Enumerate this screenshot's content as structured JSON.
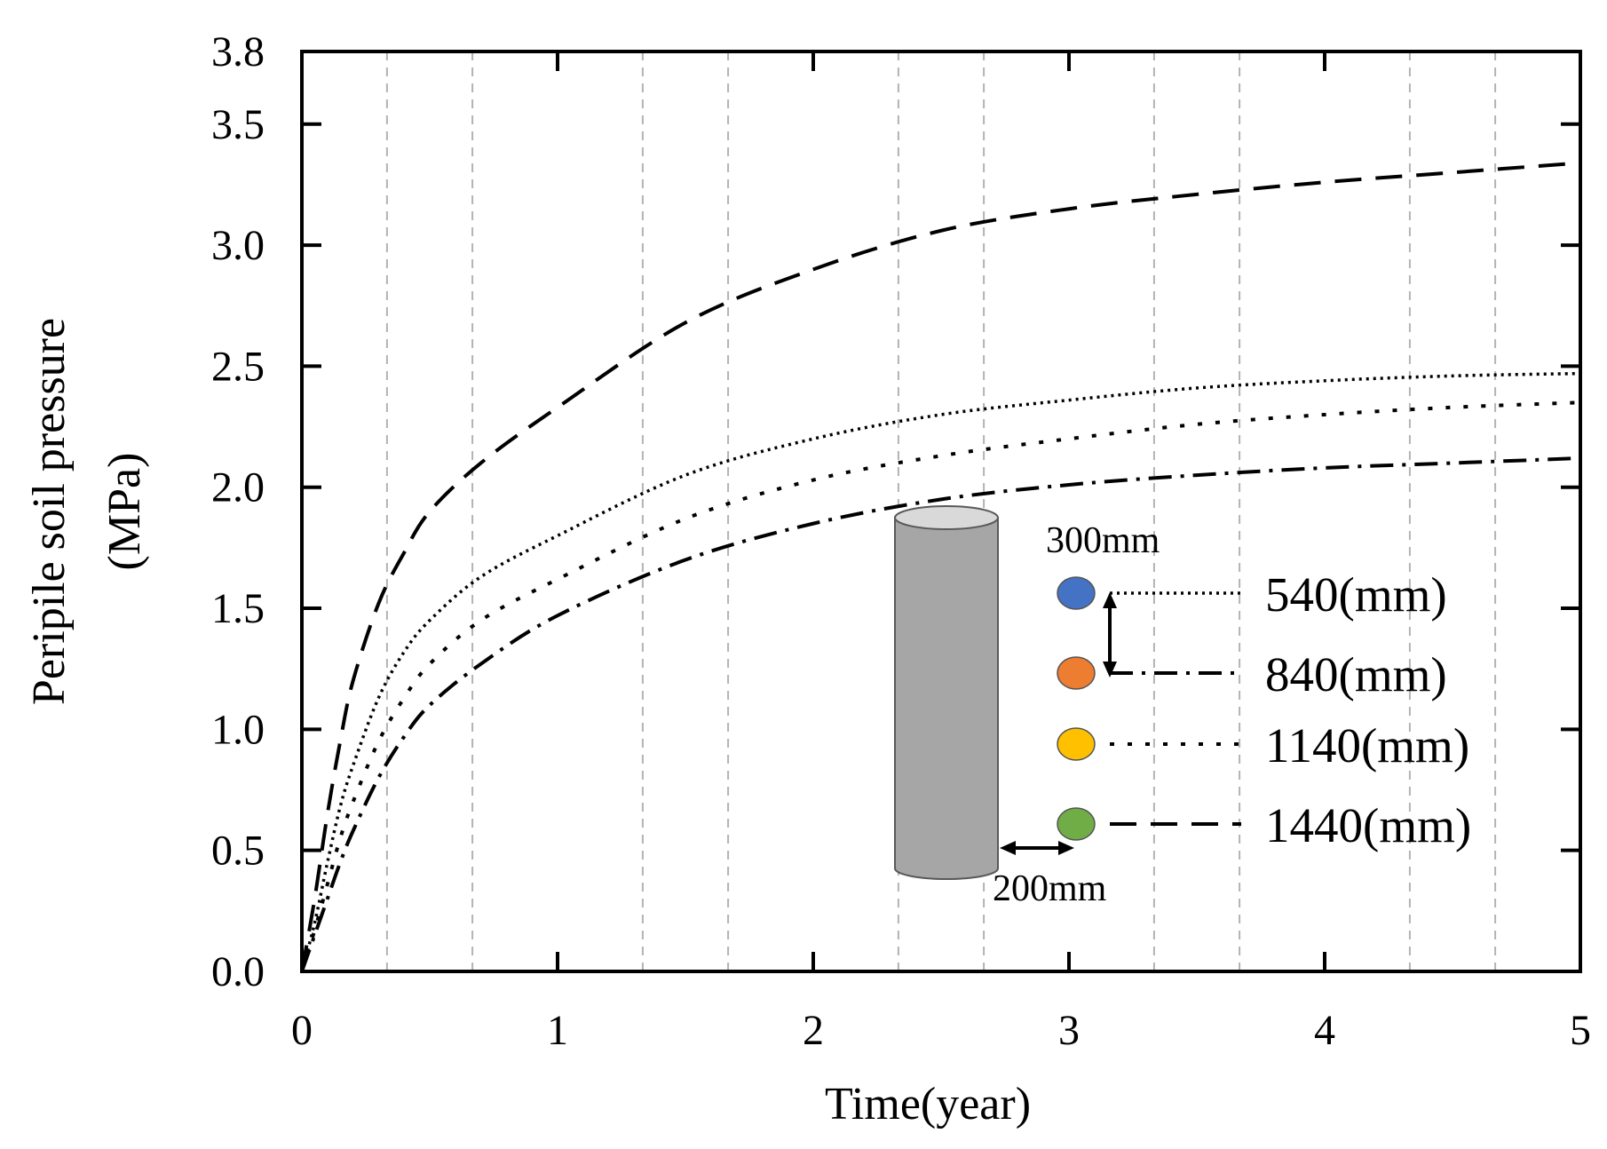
{
  "chart_data": {
    "type": "line",
    "xlabel": "Time(year)",
    "ylabel_line1": "Peripile soil pressure",
    "ylabel_line2": "(MPa)",
    "xlim": [
      0,
      5
    ],
    "ylim": [
      0,
      3.8
    ],
    "xticks": [
      0,
      1,
      2,
      3,
      4,
      5
    ],
    "xtick_labels": [
      "0",
      "1",
      "2",
      "3",
      "4",
      "5"
    ],
    "yticks": [
      0,
      0.5,
      1.0,
      1.5,
      2.0,
      2.5,
      3.0,
      3.5,
      3.8
    ],
    "ytick_labels": [
      "0.0",
      "0.5",
      "1.0",
      "1.5",
      "2.0",
      "2.5",
      "3.0",
      "3.5",
      "3.8"
    ],
    "grid_x": [
      0.333,
      0.667,
      1.333,
      1.667,
      2.333,
      2.667,
      3.333,
      3.667,
      4.333,
      4.667
    ],
    "series": [
      {
        "name": "540(mm)",
        "style": "dotted",
        "marker_color": "#4472c4",
        "x": [
          0,
          0.05,
          0.1,
          0.15,
          0.2,
          0.3,
          0.4,
          0.5,
          0.7,
          1.0,
          1.5,
          2.0,
          2.5,
          3.0,
          3.5,
          4.0,
          4.5,
          5.0
        ],
        "y": [
          0,
          0.2,
          0.45,
          0.68,
          0.85,
          1.13,
          1.32,
          1.45,
          1.63,
          1.8,
          2.05,
          2.2,
          2.3,
          2.36,
          2.41,
          2.44,
          2.46,
          2.47
        ]
      },
      {
        "name": "840(mm)",
        "style": "dash-dot",
        "marker_color": "#ed7d31",
        "x": [
          0,
          0.05,
          0.1,
          0.15,
          0.2,
          0.3,
          0.4,
          0.5,
          0.7,
          1.0,
          1.5,
          2.0,
          2.5,
          3.0,
          3.5,
          4.0,
          4.5,
          5.0
        ],
        "y": [
          0,
          0.15,
          0.3,
          0.45,
          0.58,
          0.8,
          0.97,
          1.1,
          1.27,
          1.47,
          1.7,
          1.85,
          1.95,
          2.01,
          2.05,
          2.08,
          2.1,
          2.12
        ]
      },
      {
        "name": "1140(mm)",
        "style": "dashed-short",
        "marker_color": "#ffc000",
        "x": [
          0,
          0.05,
          0.1,
          0.15,
          0.2,
          0.3,
          0.4,
          0.5,
          0.7,
          1.0,
          1.5,
          2.0,
          2.5,
          3.0,
          3.5,
          4.0,
          4.5,
          5.0
        ],
        "y": [
          0,
          0.17,
          0.36,
          0.55,
          0.7,
          0.95,
          1.13,
          1.27,
          1.45,
          1.62,
          1.87,
          2.03,
          2.13,
          2.2,
          2.26,
          2.3,
          2.33,
          2.35
        ]
      },
      {
        "name": "1440(mm)",
        "style": "dashed-long",
        "marker_color": "#70ad47",
        "x": [
          0,
          0.05,
          0.1,
          0.15,
          0.2,
          0.3,
          0.4,
          0.5,
          0.7,
          1.0,
          1.5,
          2.0,
          2.5,
          3.0,
          3.5,
          4.0,
          4.5,
          5.0
        ],
        "y": [
          0,
          0.3,
          0.65,
          0.95,
          1.2,
          1.52,
          1.73,
          1.9,
          2.1,
          2.33,
          2.68,
          2.9,
          3.06,
          3.15,
          3.21,
          3.26,
          3.3,
          3.34
        ]
      }
    ],
    "inset": {
      "top_dimension": "300mm",
      "spacing_dimension": "200mm",
      "pile_color": "#a6a6a6"
    }
  }
}
